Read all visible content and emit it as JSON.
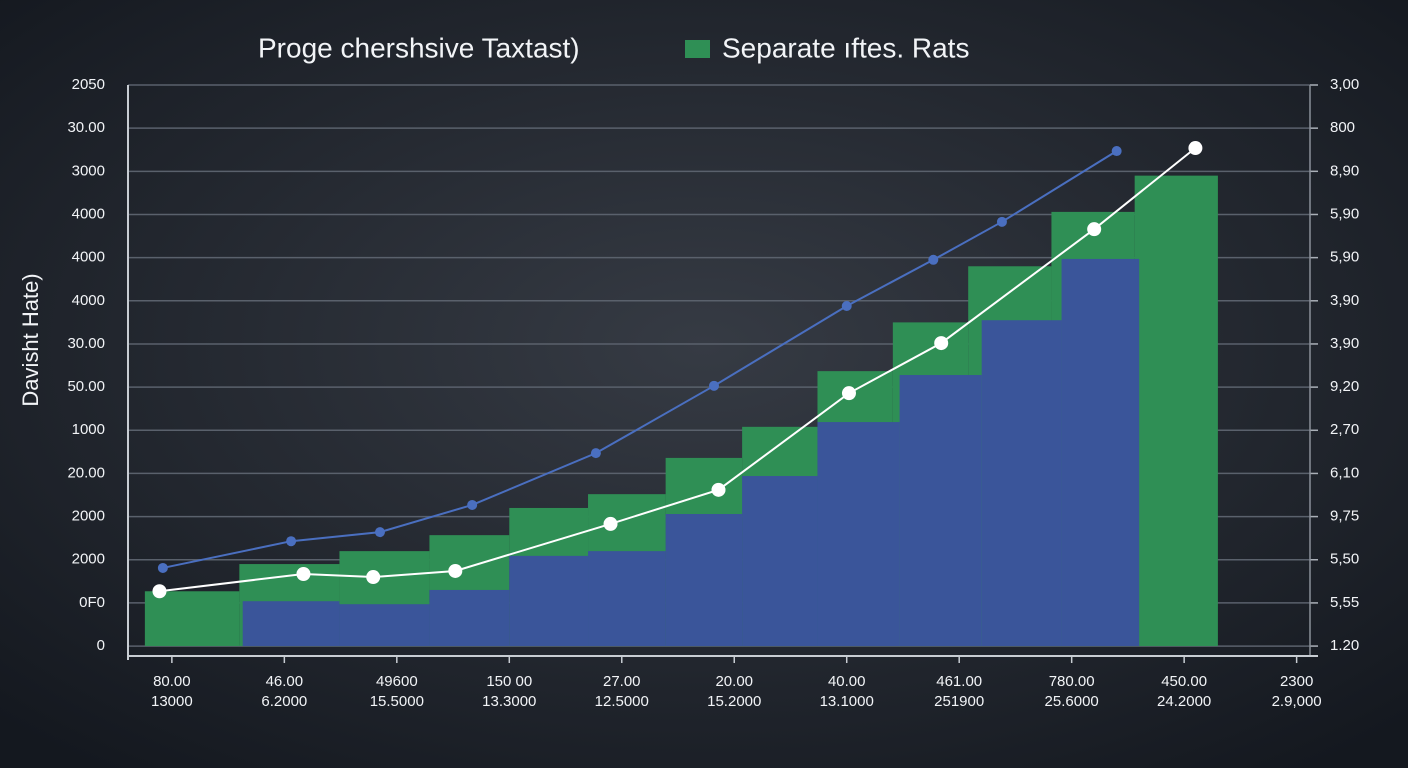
{
  "chart_data": {
    "type": "combo",
    "title": "Proge chershsive Taxtast)",
    "y_label": "Davisht Hate)",
    "xlim": [
      -0.39,
      10.19
    ],
    "ylim": [
      -0.23,
      13
    ],
    "xticks": [
      {
        "value": 0,
        "label": [
          "80.00",
          "13000"
        ]
      },
      {
        "value": 1,
        "label": [
          "46.00",
          "6.2000"
        ]
      },
      {
        "value": 2,
        "label": [
          "49600",
          "15.5000"
        ]
      },
      {
        "value": 3,
        "label": [
          "150 00",
          "13.3000"
        ]
      },
      {
        "value": 4,
        "label": [
          "27.00",
          "12.5000"
        ]
      },
      {
        "value": 5,
        "label": [
          "20.00",
          "15.2000"
        ]
      },
      {
        "value": 6,
        "label": [
          "40.00",
          "13.1000"
        ]
      },
      {
        "value": 7,
        "label": [
          "461.00",
          "251900"
        ]
      },
      {
        "value": 8,
        "label": [
          "780.00",
          "25.6000"
        ]
      },
      {
        "value": 9,
        "label": [
          "450.00",
          "24.2000"
        ]
      },
      {
        "value": 10,
        "label": [
          "2300",
          "2.9,000"
        ]
      }
    ],
    "yticks": [
      {
        "value": 0,
        "label": "0"
      },
      {
        "value": 1,
        "label": "0F0"
      },
      {
        "value": 2,
        "label": "2000"
      },
      {
        "value": 3,
        "label": "2000"
      },
      {
        "value": 4,
        "label": "20.00"
      },
      {
        "value": 5,
        "label": "1000"
      },
      {
        "value": 6,
        "label": "50.00"
      },
      {
        "value": 7,
        "label": "30.00"
      },
      {
        "value": 8,
        "label": "4000"
      },
      {
        "value": 9,
        "label": "4000"
      },
      {
        "value": 10,
        "label": "4000"
      },
      {
        "value": 11,
        "label": "3000"
      },
      {
        "value": 12,
        "label": "30.00"
      },
      {
        "value": 13,
        "label": "2050"
      }
    ],
    "y2ticks": [
      {
        "value": 0,
        "label": "1.20"
      },
      {
        "value": 1,
        "label": "5,55"
      },
      {
        "value": 2,
        "label": "5,50"
      },
      {
        "value": 3,
        "label": "9,75"
      },
      {
        "value": 4,
        "label": "6,10"
      },
      {
        "value": 5,
        "label": "2,70"
      },
      {
        "value": 6,
        "label": "9,20"
      },
      {
        "value": 7,
        "label": "3,90"
      },
      {
        "value": 8,
        "label": "3,90"
      },
      {
        "value": 9,
        "label": "5,90"
      },
      {
        "value": 10,
        "label": "5,90"
      },
      {
        "value": 11,
        "label": "8,90"
      },
      {
        "value": 12,
        "label": "800"
      },
      {
        "value": 13,
        "label": "3,00"
      }
    ],
    "grid": true,
    "series": [
      {
        "name": "Separate ıftes. Rats",
        "type": "bar",
        "color": "#2f8f55",
        "bins": [
          -0.24,
          0.6,
          1.49,
          2.29,
          3.0,
          3.7,
          4.39,
          5.07,
          5.74,
          6.41,
          7.08,
          7.82,
          8.56,
          9.3
        ],
        "values": [
          1.27,
          1.9,
          2.2,
          2.57,
          3.2,
          3.52,
          4.36,
          5.08,
          6.37,
          7.5,
          8.8,
          10.06,
          10.9
        ]
      },
      {
        "type": "bar",
        "color": "#3a559a",
        "bins": [
          0.63,
          1.49,
          2.29,
          3.0,
          3.7,
          4.39,
          5.07,
          5.74,
          6.47,
          7.2,
          7.91,
          8.6
        ],
        "values": [
          1.04,
          0.97,
          1.3,
          2.09,
          2.2,
          3.06,
          3.94,
          5.19,
          6.28,
          7.55,
          8.97
        ]
      },
      {
        "type": "line",
        "color": "#4a6fc0",
        "x": [
          -0.08,
          1.06,
          1.85,
          2.67,
          3.77,
          4.82,
          6.0,
          6.77,
          7.38,
          8.4
        ],
        "values": [
          1.81,
          2.43,
          2.64,
          3.27,
          4.47,
          6.03,
          7.88,
          8.95,
          9.83,
          11.47
        ]
      },
      {
        "type": "line",
        "color": "#ffffff",
        "x": [
          -0.11,
          1.17,
          1.79,
          2.52,
          3.9,
          4.86,
          6.02,
          6.84,
          8.2,
          9.1
        ],
        "values": [
          1.27,
          1.67,
          1.6,
          1.74,
          2.83,
          3.62,
          5.86,
          7.02,
          9.66,
          11.54
        ]
      }
    ]
  }
}
